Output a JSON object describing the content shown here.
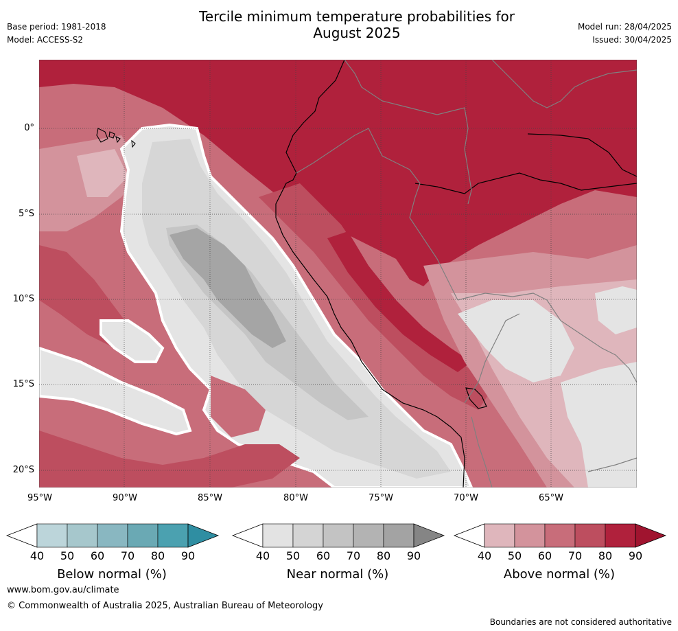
{
  "header": {
    "title_line1": "Tercile minimum temperature probabilities for",
    "title_line2": "August 2025",
    "base_period": "Base period: 1981-2018",
    "model": "Model: ACCESS-S2",
    "model_run": "Model run: 28/04/2025",
    "issued": "Issued: 30/04/2025"
  },
  "map": {
    "lat_labels": [
      "0°",
      "5°S",
      "10°S",
      "15°S",
      "20°S"
    ],
    "lon_labels": [
      "95°W",
      "90°W",
      "85°W",
      "80°W",
      "75°W",
      "70°W",
      "65°W"
    ],
    "colors": {
      "above": [
        "#dfb6bc",
        "#d3939c",
        "#c86d7a",
        "#bd4e5f",
        "#b0213c"
      ],
      "near": [
        "#e4e4e4",
        "#d6d6d6",
        "#c5c5c5",
        "#b4b4b4",
        "#a5a5a5"
      ],
      "below": [
        "#bdd6dc",
        "#a5c7cd",
        "#87b7c1",
        "#69a9b5",
        "#4aa1b0"
      ],
      "coast": "#000000",
      "border": "#808080"
    }
  },
  "colorbars": [
    {
      "label": "Below normal (%)",
      "ticks": [
        "40",
        "50",
        "60",
        "70",
        "80",
        "90"
      ],
      "colors": [
        "#bcd5da",
        "#a6c7cc",
        "#89b7c1",
        "#6aa9b4",
        "#4ba1b0",
        "#2f8ea2"
      ]
    },
    {
      "label": "Near normal (%)",
      "ticks": [
        "40",
        "50",
        "60",
        "70",
        "80",
        "90"
      ],
      "colors": [
        "#e3e3e3",
        "#d4d4d4",
        "#c3c3c3",
        "#b3b3b3",
        "#a3a3a3",
        "#858585"
      ]
    },
    {
      "label": "Above normal (%)",
      "ticks": [
        "40",
        "50",
        "60",
        "70",
        "80",
        "90"
      ],
      "colors": [
        "#dfb6bc",
        "#d3939c",
        "#c86d7a",
        "#bd4e5f",
        "#b0213c",
        "#a0142f"
      ]
    }
  ],
  "footer": {
    "url": "www.bom.gov.au/climate",
    "copyright": "© Commonwealth of Australia 2025, Australian Bureau of Meteorology",
    "note": "Boundaries are not considered authoritative"
  }
}
